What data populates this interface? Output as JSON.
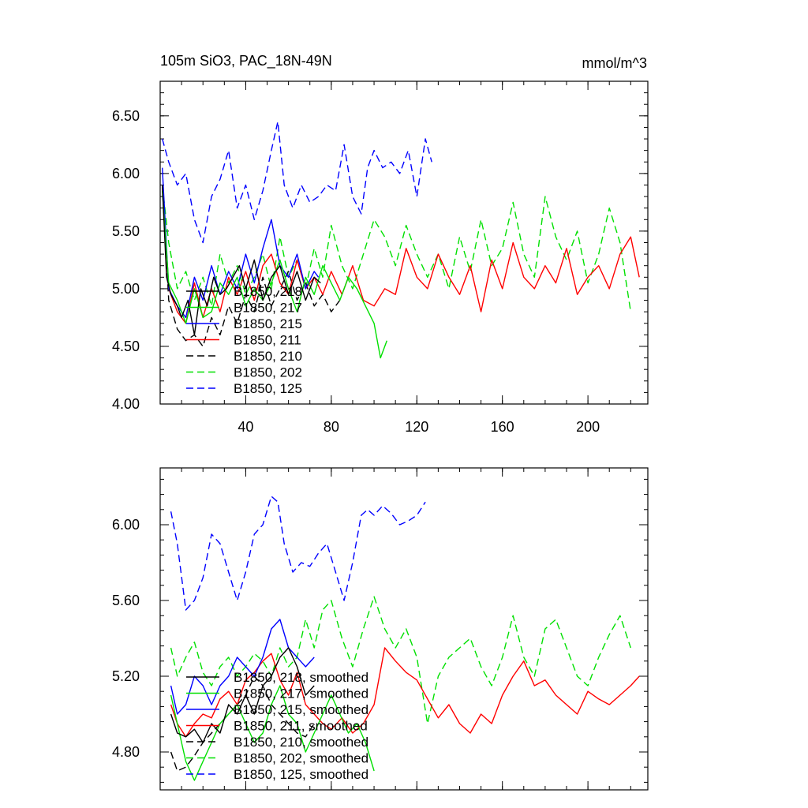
{
  "chart_data": [
    {
      "type": "line",
      "title": "105m SiO3, PAC_18N-49N",
      "units": "mmol/m^3",
      "xlim": [
        0,
        228
      ],
      "ylim": [
        4.0,
        6.8
      ],
      "x_ticks": [
        40,
        80,
        120,
        160,
        200
      ],
      "x_tick_labels": [
        "40",
        "80",
        "120",
        "160",
        "200"
      ],
      "y_ticks": [
        4.0,
        4.5,
        5.0,
        5.5,
        6.0,
        6.5
      ],
      "y_tick_labels": [
        "4.00",
        "4.50",
        "5.00",
        "5.50",
        "6.00",
        "6.50"
      ],
      "legend_position": "lower-left",
      "series": [
        {
          "name": "B1850, 218",
          "color": "#000000",
          "dash": "solid",
          "x": [
            1,
            3,
            5,
            8,
            10,
            13,
            16,
            19,
            22,
            25,
            28,
            31,
            34,
            37,
            40,
            44,
            48,
            52,
            56,
            60,
            64,
            68,
            72,
            75
          ],
          "values": [
            5.9,
            5.1,
            4.95,
            4.85,
            4.75,
            4.9,
            4.6,
            5.0,
            4.85,
            5.1,
            4.95,
            5.0,
            5.1,
            5.2,
            5.0,
            5.25,
            4.9,
            5.1,
            5.2,
            4.95,
            5.15,
            4.9,
            5.1,
            5.05
          ]
        },
        {
          "name": "B1850, 217",
          "color": "#00e000",
          "dash": "solid",
          "x": [
            1,
            4,
            8,
            12,
            16,
            20,
            24,
            28,
            32,
            36,
            40,
            44,
            48,
            52,
            56,
            60,
            64,
            68,
            72,
            76,
            80,
            84,
            88,
            92,
            96,
            100,
            103,
            106
          ],
          "values": [
            5.85,
            5.05,
            4.9,
            4.7,
            5.0,
            4.75,
            4.8,
            5.05,
            4.95,
            5.1,
            4.85,
            5.0,
            4.9,
            5.05,
            5.25,
            5.0,
            4.8,
            5.1,
            4.95,
            5.2,
            5.05,
            4.9,
            5.1,
            5.0,
            4.85,
            4.7,
            4.4,
            4.55
          ]
        },
        {
          "name": "B1850, 215",
          "color": "#0000ff",
          "dash": "solid",
          "x": [
            1,
            4,
            8,
            12,
            16,
            20,
            24,
            28,
            32,
            36,
            40,
            44,
            48,
            52,
            56,
            60,
            64,
            68,
            72,
            74
          ],
          "values": [
            6.05,
            5.0,
            4.85,
            4.75,
            5.1,
            4.9,
            5.2,
            4.95,
            5.15,
            5.0,
            5.3,
            5.05,
            5.35,
            5.6,
            5.2,
            5.1,
            5.3,
            5.0,
            5.15,
            5.1
          ]
        },
        {
          "name": "B1850, 211",
          "color": "#ff0000",
          "dash": "solid",
          "x": [
            1,
            4,
            8,
            12,
            16,
            20,
            24,
            28,
            32,
            36,
            40,
            44,
            48,
            52,
            56,
            60,
            64,
            68,
            72,
            76,
            80,
            85,
            90,
            95,
            100,
            105,
            110,
            115,
            120,
            125,
            130,
            135,
            140,
            145,
            150,
            155,
            160,
            165,
            170,
            175,
            180,
            185,
            190,
            195,
            200,
            205,
            210,
            215,
            220,
            224
          ],
          "values": [
            5.9,
            5.0,
            4.8,
            4.7,
            5.05,
            4.75,
            5.0,
            4.8,
            5.1,
            4.95,
            5.15,
            4.9,
            5.2,
            5.3,
            5.05,
            4.95,
            5.25,
            5.0,
            5.1,
            4.95,
            5.15,
            4.95,
            5.2,
            4.9,
            4.85,
            5.0,
            4.95,
            5.35,
            5.1,
            5.0,
            5.3,
            5.1,
            4.95,
            5.2,
            4.8,
            5.25,
            5.0,
            5.4,
            5.1,
            5.0,
            5.2,
            5.05,
            5.35,
            4.95,
            5.1,
            5.2,
            5.0,
            5.3,
            5.45,
            5.1
          ]
        },
        {
          "name": "B1850, 210",
          "color": "#000000",
          "dash": "dash",
          "x": [
            1,
            4,
            8,
            12,
            16,
            20,
            24,
            28,
            32,
            36,
            40,
            44,
            48,
            52,
            56,
            60,
            64,
            68,
            72,
            76,
            80,
            84
          ],
          "values": [
            5.9,
            4.9,
            4.65,
            4.55,
            4.6,
            4.5,
            4.75,
            4.6,
            4.85,
            4.7,
            4.95,
            4.8,
            5.1,
            4.85,
            5.0,
            5.15,
            4.9,
            5.05,
            4.85,
            4.95,
            4.8,
            4.9
          ]
        },
        {
          "name": "B1850, 202",
          "color": "#00e000",
          "dash": "dash",
          "x": [
            1,
            4,
            8,
            12,
            16,
            20,
            24,
            28,
            32,
            36,
            40,
            44,
            48,
            52,
            56,
            60,
            64,
            68,
            72,
            76,
            80,
            85,
            90,
            95,
            100,
            105,
            110,
            115,
            120,
            125,
            130,
            135,
            140,
            145,
            150,
            155,
            160,
            165,
            170,
            175,
            180,
            185,
            190,
            195,
            200,
            205,
            210,
            215,
            220
          ],
          "values": [
            5.9,
            5.4,
            5.0,
            5.15,
            4.9,
            5.1,
            4.85,
            5.3,
            5.05,
            5.2,
            4.95,
            5.1,
            5.3,
            5.0,
            5.45,
            5.1,
            5.25,
            5.0,
            5.35,
            5.1,
            5.55,
            5.2,
            5.0,
            5.3,
            5.6,
            5.45,
            5.2,
            5.55,
            5.3,
            5.1,
            5.3,
            5.0,
            5.45,
            5.15,
            5.6,
            5.2,
            5.35,
            5.75,
            5.3,
            5.1,
            5.8,
            5.45,
            5.25,
            5.5,
            5.05,
            5.3,
            5.7,
            5.4,
            4.8
          ]
        },
        {
          "name": "B1850, 125",
          "color": "#0000ff",
          "dash": "dash",
          "x": [
            1,
            4,
            8,
            12,
            16,
            20,
            24,
            28,
            32,
            36,
            40,
            44,
            48,
            52,
            55,
            58,
            62,
            66,
            70,
            74,
            78,
            82,
            86,
            90,
            94,
            97,
            100,
            104,
            108,
            112,
            116,
            120,
            124,
            127
          ],
          "values": [
            6.3,
            6.1,
            5.9,
            6.0,
            5.6,
            5.4,
            5.8,
            5.95,
            6.2,
            5.7,
            5.9,
            5.6,
            5.85,
            6.2,
            6.45,
            5.9,
            5.7,
            5.9,
            5.75,
            5.8,
            5.9,
            5.85,
            6.25,
            5.8,
            5.65,
            6.05,
            6.2,
            6.05,
            6.1,
            6.0,
            6.2,
            5.8,
            6.3,
            6.1
          ]
        }
      ]
    },
    {
      "type": "line",
      "xlim": [
        0,
        228
      ],
      "ylim": [
        4.6,
        6.3
      ],
      "x_ticks": [
        40,
        80,
        120,
        160,
        200
      ],
      "y_ticks": [
        4.8,
        5.2,
        5.6,
        6.0
      ],
      "y_tick_labels": [
        "4.80",
        "5.20",
        "5.60",
        "6.00"
      ],
      "legend_position": "lower-left",
      "series": [
        {
          "name": "B1850, 218, smoothed",
          "color": "#000000",
          "dash": "solid",
          "x": [
            5,
            8,
            12,
            16,
            20,
            24,
            28,
            32,
            36,
            40,
            44,
            48,
            52,
            56,
            60,
            64,
            68,
            72
          ],
          "values": [
            5.0,
            4.9,
            4.88,
            4.92,
            4.85,
            4.95,
            4.9,
            5.05,
            5.0,
            5.1,
            5.0,
            5.15,
            5.2,
            5.3,
            5.35,
            5.25,
            5.1,
            5.15
          ]
        },
        {
          "name": "B1850, 217, smoothed",
          "color": "#00e000",
          "dash": "solid",
          "x": [
            5,
            8,
            12,
            16,
            20,
            24,
            28,
            32,
            36,
            40,
            44,
            48,
            52,
            56,
            60,
            64,
            68,
            72,
            76,
            80,
            84,
            88,
            92,
            96,
            100
          ],
          "values": [
            5.1,
            4.95,
            4.75,
            4.65,
            4.75,
            4.85,
            4.95,
            5.0,
            5.05,
            4.95,
            4.85,
            4.9,
            5.05,
            5.15,
            5.0,
            4.95,
            4.8,
            4.9,
            5.0,
            5.1,
            5.0,
            4.9,
            4.95,
            4.85,
            4.7
          ]
        },
        {
          "name": "B1850, 215, smoothed",
          "color": "#0000ff",
          "dash": "solid",
          "x": [
            5,
            8,
            12,
            16,
            20,
            24,
            28,
            32,
            36,
            40,
            44,
            48,
            52,
            56,
            60,
            64,
            68,
            72
          ],
          "values": [
            5.15,
            5.0,
            5.05,
            5.2,
            5.15,
            5.05,
            5.15,
            5.2,
            5.3,
            5.25,
            5.2,
            5.3,
            5.45,
            5.5,
            5.35,
            5.3,
            5.25,
            5.3
          ]
        },
        {
          "name": "B1850, 211, smoothed",
          "color": "#ff0000",
          "dash": "solid",
          "x": [
            5,
            8,
            12,
            16,
            20,
            24,
            28,
            32,
            36,
            40,
            44,
            48,
            52,
            56,
            60,
            64,
            68,
            72,
            76,
            80,
            85,
            90,
            95,
            100,
            105,
            110,
            115,
            120,
            125,
            130,
            135,
            140,
            145,
            150,
            155,
            160,
            165,
            170,
            175,
            180,
            185,
            190,
            195,
            200,
            205,
            210,
            215,
            220,
            224
          ],
          "values": [
            5.05,
            4.95,
            4.88,
            4.95,
            5.0,
            4.98,
            5.08,
            5.12,
            5.05,
            5.18,
            5.22,
            5.28,
            5.32,
            5.18,
            5.1,
            5.22,
            5.05,
            5.0,
            4.95,
            4.92,
            4.98,
            4.9,
            4.95,
            5.05,
            5.35,
            5.28,
            5.22,
            5.18,
            5.08,
            4.98,
            5.05,
            4.95,
            4.9,
            5.0,
            4.95,
            5.1,
            5.2,
            5.28,
            5.15,
            5.18,
            5.1,
            5.05,
            5.0,
            5.12,
            5.08,
            5.05,
            5.1,
            5.15,
            5.2
          ]
        },
        {
          "name": "B1850, 210, smoothed",
          "color": "#000000",
          "dash": "dash",
          "x": [
            5,
            8,
            12,
            16,
            20,
            24,
            28,
            32,
            36,
            40,
            44,
            48,
            52,
            56,
            60,
            64,
            68,
            72
          ],
          "values": [
            4.8,
            4.7,
            4.72,
            4.78,
            4.85,
            4.9,
            4.95,
            5.0,
            5.05,
            5.1,
            5.2,
            5.15,
            5.05,
            5.0,
            4.95,
            4.9,
            4.88,
            4.95
          ]
        },
        {
          "name": "B1850, 202, smoothed",
          "color": "#00e000",
          "dash": "dash",
          "x": [
            5,
            8,
            12,
            16,
            20,
            24,
            28,
            32,
            36,
            40,
            44,
            48,
            52,
            56,
            60,
            64,
            68,
            72,
            76,
            80,
            85,
            90,
            95,
            100,
            105,
            110,
            115,
            120,
            125,
            130,
            135,
            140,
            145,
            150,
            155,
            160,
            165,
            170,
            175,
            180,
            185,
            190,
            195,
            200,
            205,
            210,
            215,
            220
          ],
          "values": [
            5.35,
            5.2,
            5.3,
            5.38,
            5.22,
            5.15,
            5.25,
            5.3,
            5.2,
            5.25,
            5.32,
            5.28,
            5.2,
            5.35,
            5.25,
            5.3,
            5.5,
            5.35,
            5.55,
            5.6,
            5.4,
            5.25,
            5.45,
            5.62,
            5.45,
            5.35,
            5.45,
            5.3,
            4.95,
            5.2,
            5.3,
            5.35,
            5.4,
            5.25,
            5.15,
            5.3,
            5.52,
            5.3,
            5.2,
            5.45,
            5.5,
            5.35,
            5.2,
            5.15,
            5.3,
            5.42,
            5.52,
            5.35
          ]
        },
        {
          "name": "B1850, 125, smoothed",
          "color": "#0000ff",
          "dash": "dash",
          "x": [
            5,
            8,
            12,
            16,
            20,
            24,
            28,
            32,
            36,
            40,
            44,
            48,
            52,
            55,
            58,
            62,
            66,
            70,
            74,
            78,
            82,
            86,
            90,
            94,
            97,
            100,
            104,
            108,
            112,
            116,
            120,
            124
          ],
          "values": [
            6.07,
            5.9,
            5.55,
            5.6,
            5.72,
            5.95,
            5.9,
            5.75,
            5.6,
            5.75,
            5.95,
            6.0,
            6.15,
            6.12,
            5.9,
            5.75,
            5.8,
            5.78,
            5.85,
            5.9,
            5.75,
            5.6,
            5.8,
            6.05,
            6.08,
            6.05,
            6.1,
            6.06,
            6.0,
            6.02,
            6.05,
            6.12
          ]
        }
      ]
    }
  ]
}
